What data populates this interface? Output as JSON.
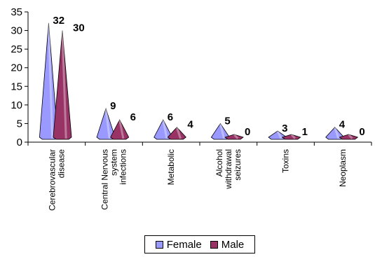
{
  "chart_data": {
    "type": "bar",
    "categories": [
      [
        "Cerebrovascular",
        "disease"
      ],
      [
        "Central Nervous",
        "system",
        "infections"
      ],
      [
        "Metabolic"
      ],
      [
        "Alcohol",
        "withdrawal",
        "seizures"
      ],
      [
        "Toxins"
      ],
      [
        "Neoplasm"
      ]
    ],
    "series": [
      {
        "name": "Female",
        "values": [
          32,
          9,
          6,
          5,
          3,
          4
        ],
        "color": "#9999ff"
      },
      {
        "name": "Male",
        "values": [
          30,
          6,
          4,
          0,
          1,
          0
        ],
        "color": "#993366"
      }
    ],
    "data_labels": {
      "Female": [
        "32",
        "9",
        "6",
        "5",
        "3",
        "4"
      ],
      "Male": [
        "30",
        "6",
        "4",
        "0",
        "1",
        "0"
      ]
    },
    "yticks": [
      "0",
      "5",
      "10",
      "15",
      "20",
      "25",
      "30",
      "35"
    ],
    "ylim": [
      0,
      35
    ],
    "title": "",
    "xlabel": "",
    "ylabel": "",
    "legend_position": "bottom",
    "grid": false,
    "mark_shape": "cone"
  }
}
